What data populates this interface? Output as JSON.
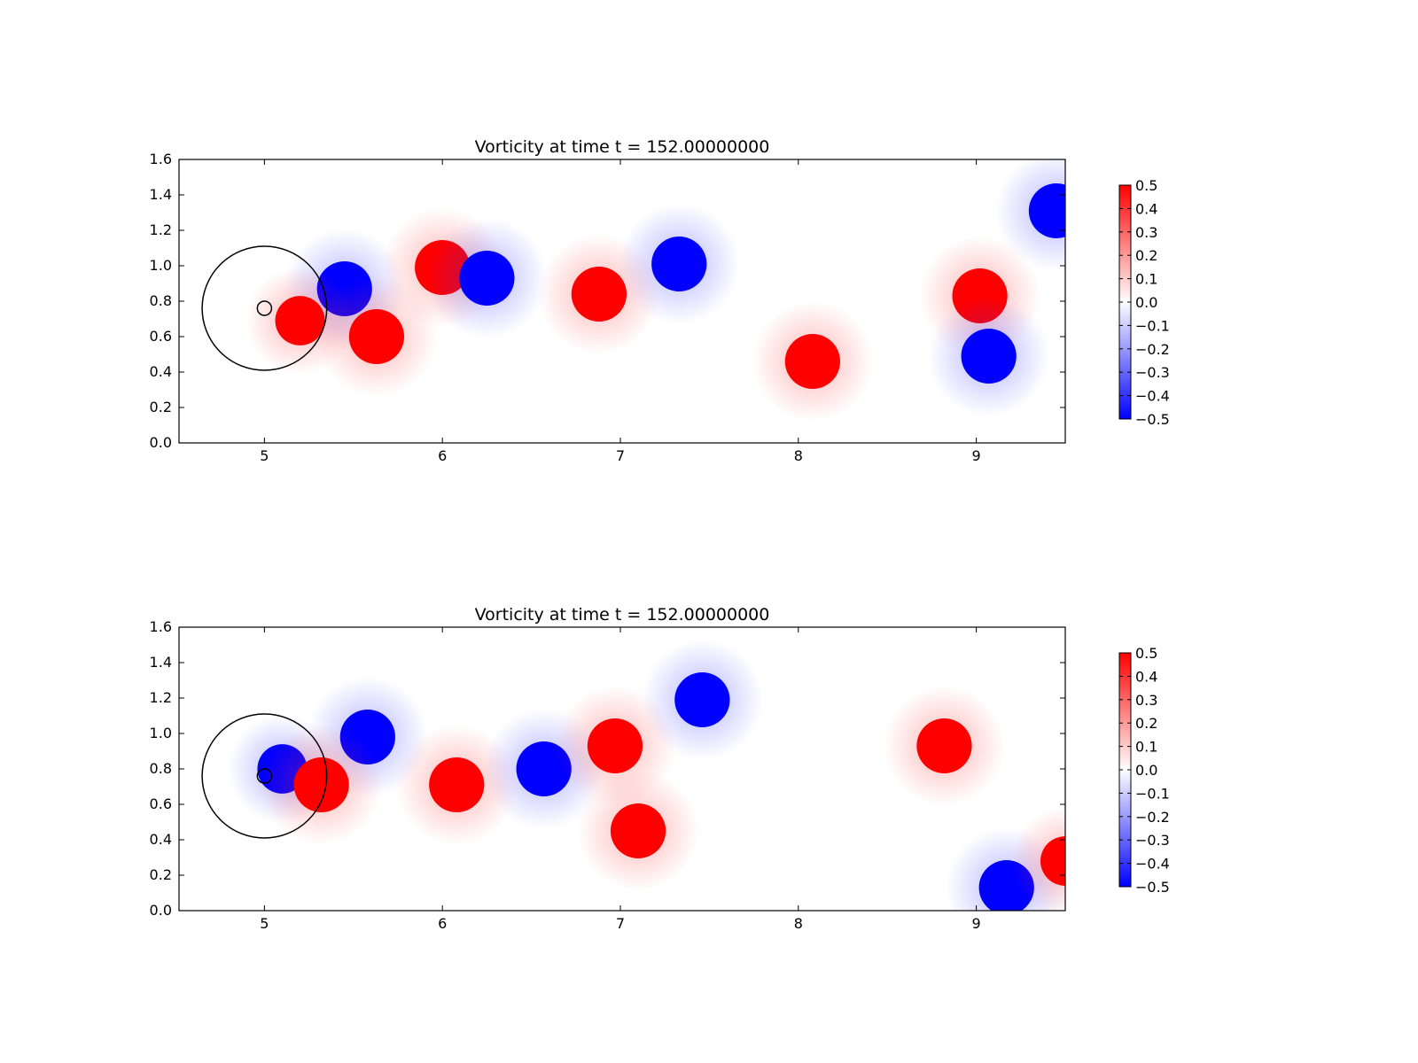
{
  "chart_data": [
    {
      "type": "heatmap",
      "title": "Vorticity at time t =   152.00000000",
      "xlim": [
        4.52,
        9.5
      ],
      "ylim": [
        0.0,
        1.6
      ],
      "x_ticks": [
        5,
        6,
        7,
        8,
        9
      ],
      "y_ticks": [
        0.0,
        0.2,
        0.4,
        0.6,
        0.8,
        1.0,
        1.2,
        1.4,
        1.6
      ],
      "grid": false,
      "field": "vorticity",
      "colormap": "bwr",
      "colorbar": {
        "range": [
          -0.5,
          0.5
        ],
        "ticks": [
          0.5,
          0.4,
          0.3,
          0.2,
          0.1,
          0.0,
          -0.1,
          -0.2,
          -0.3,
          -0.4,
          -0.5
        ],
        "placement": "right"
      },
      "obstacle": {
        "cx": 5.0,
        "cy": 0.76,
        "r_inner": 0.04,
        "r_outer": 0.35
      },
      "vortices": [
        {
          "x": 5.45,
          "y": 0.87,
          "sign": -1,
          "strength": 1.0
        },
        {
          "x": 5.63,
          "y": 0.6,
          "sign": 1,
          "strength": 1.0
        },
        {
          "x": 5.2,
          "y": 0.69,
          "sign": 1,
          "strength": 0.9
        },
        {
          "x": 6.0,
          "y": 0.99,
          "sign": 1,
          "strength": 1.0
        },
        {
          "x": 6.25,
          "y": 0.93,
          "sign": -1,
          "strength": 1.0
        },
        {
          "x": 6.88,
          "y": 0.84,
          "sign": 1,
          "strength": 1.0
        },
        {
          "x": 7.33,
          "y": 1.01,
          "sign": -1,
          "strength": 1.0
        },
        {
          "x": 8.08,
          "y": 0.46,
          "sign": 1,
          "strength": 1.0
        },
        {
          "x": 9.02,
          "y": 0.83,
          "sign": 1,
          "strength": 1.0
        },
        {
          "x": 9.07,
          "y": 0.49,
          "sign": -1,
          "strength": 1.0
        },
        {
          "x": 9.45,
          "y": 1.31,
          "sign": -1,
          "strength": 1.0
        }
      ]
    },
    {
      "type": "heatmap",
      "title": "Vorticity at time t =   152.00000000",
      "xlim": [
        4.52,
        9.5
      ],
      "ylim": [
        0.0,
        1.6
      ],
      "x_ticks": [
        5,
        6,
        7,
        8,
        9
      ],
      "y_ticks": [
        0.0,
        0.2,
        0.4,
        0.6,
        0.8,
        1.0,
        1.2,
        1.4,
        1.6
      ],
      "grid": false,
      "field": "vorticity",
      "colormap": "bwr",
      "colorbar": {
        "range": [
          -0.5,
          0.5
        ],
        "ticks": [
          0.5,
          0.4,
          0.3,
          0.2,
          0.1,
          0.0,
          -0.1,
          -0.2,
          -0.3,
          -0.4,
          -0.5
        ],
        "placement": "right"
      },
      "obstacle": {
        "cx": 5.0,
        "cy": 0.76,
        "r_inner": 0.04,
        "r_outer": 0.35
      },
      "vortices": [
        {
          "x": 5.58,
          "y": 0.98,
          "sign": -1,
          "strength": 1.0
        },
        {
          "x": 5.1,
          "y": 0.8,
          "sign": -1,
          "strength": 0.9
        },
        {
          "x": 5.32,
          "y": 0.71,
          "sign": 1,
          "strength": 1.0
        },
        {
          "x": 6.08,
          "y": 0.71,
          "sign": 1,
          "strength": 1.0
        },
        {
          "x": 6.57,
          "y": 0.8,
          "sign": -1,
          "strength": 1.0
        },
        {
          "x": 6.97,
          "y": 0.93,
          "sign": 1,
          "strength": 1.0
        },
        {
          "x": 7.1,
          "y": 0.45,
          "sign": 1,
          "strength": 1.0
        },
        {
          "x": 7.46,
          "y": 1.19,
          "sign": -1,
          "strength": 1.0
        },
        {
          "x": 8.82,
          "y": 0.93,
          "sign": 1,
          "strength": 1.0
        },
        {
          "x": 9.17,
          "y": 0.13,
          "sign": -1,
          "strength": 1.0
        },
        {
          "x": 9.5,
          "y": 0.28,
          "sign": 1,
          "strength": 0.9
        }
      ]
    }
  ]
}
